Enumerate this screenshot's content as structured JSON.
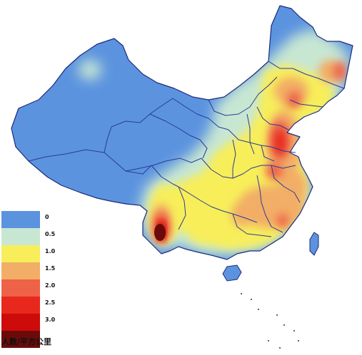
{
  "map": {
    "legend": {
      "caption": "人数/平方公里",
      "items": [
        {
          "label": "0",
          "color": "#5b93df"
        },
        {
          "label": "0.5",
          "color": "#c8e7d3"
        },
        {
          "label": "1.0",
          "color": "#f7ee5a"
        },
        {
          "label": "1.5",
          "color": "#f2ae66"
        },
        {
          "label": "2.0",
          "color": "#ee6248"
        },
        {
          "label": "2.5",
          "color": "#e8281c"
        },
        {
          "label": "3.0",
          "color": "#ce0b0b"
        },
        {
          "label": "",
          "color": "#6a0b0a"
        }
      ]
    }
  }
}
